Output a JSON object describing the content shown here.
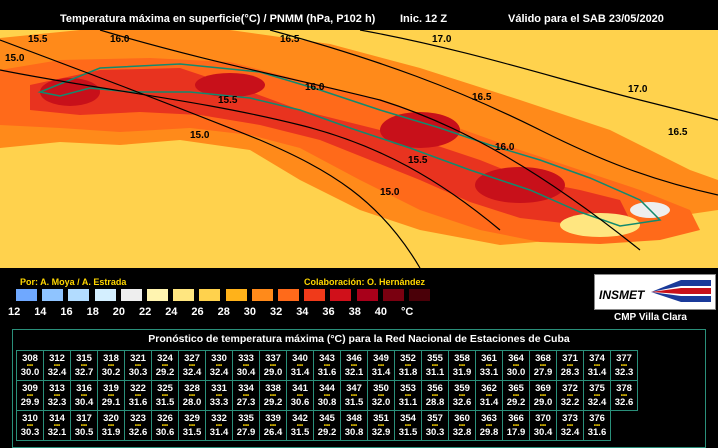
{
  "header": {
    "title": "Temperatura máxima en superficie(°C) / PNMM (hPa, P102 h)",
    "init": "Inic. 12 Z",
    "valid": "Válido para el SAB 23/05/2020"
  },
  "map": {
    "contour_labels": [
      "15.5",
      "16.0",
      "16.5",
      "17.0",
      "15.0",
      "15.5",
      "16.0",
      "16.5",
      "17.0",
      "16.5",
      "15.0",
      "15.5",
      "16.0",
      "15.0"
    ],
    "colors": {
      "sea": "#ffd24d",
      "land_hot": "#ff6a1a",
      "land_hotter": "#e8331f",
      "land_hottest": "#c8101a",
      "coast": "#118a6e"
    }
  },
  "legend": {
    "credit_left": "Por: A. Moya / A. Estrada",
    "credit_right": "Colaboración: O. Hernández",
    "colors": [
      "#6fa8ff",
      "#8fc4ff",
      "#b2dcff",
      "#d4efff",
      "#eeeeee",
      "#fff4b0",
      "#ffe680",
      "#ffd24d",
      "#ffb21a",
      "#ff8a1a",
      "#ff6a1a",
      "#f03a1a",
      "#d0101a",
      "#a8001a",
      "#7a0010",
      "#4a0008"
    ],
    "ticks": [
      "12",
      "14",
      "16",
      "18",
      "20",
      "22",
      "24",
      "26",
      "28",
      "30",
      "32",
      "34",
      "36",
      "38",
      "40",
      "°C"
    ]
  },
  "logo": {
    "text": "INSMET",
    "icon": "insmet-flag-logo"
  },
  "cmp": "CMP  Villa Clara",
  "table": {
    "title": "Pronóstico de temperatura máxima (°C) para la Red Nacional de Estaciones de Cuba",
    "rows": [
      [
        [
          "308",
          "30.0"
        ],
        [
          "312",
          "32.4"
        ],
        [
          "315",
          "32.7"
        ],
        [
          "318",
          "30.2"
        ],
        [
          "321",
          "30.3"
        ],
        [
          "324",
          "29.2"
        ],
        [
          "327",
          "32.4"
        ],
        [
          "330",
          "32.4"
        ],
        [
          "333",
          "30.4"
        ],
        [
          "337",
          "29.0"
        ],
        [
          "340",
          "31.4"
        ],
        [
          "343",
          "31.6"
        ],
        [
          "346",
          "32.1"
        ],
        [
          "349",
          "31.4"
        ],
        [
          "352",
          "31.8"
        ],
        [
          "355",
          "31.1"
        ],
        [
          "358",
          "31.9"
        ],
        [
          "361",
          "33.1"
        ],
        [
          "364",
          "30.0"
        ],
        [
          "368",
          "27.9"
        ],
        [
          "371",
          "28.3"
        ],
        [
          "374",
          "31.4"
        ],
        [
          "377",
          "32.3"
        ]
      ],
      [
        [
          "309",
          "29.9"
        ],
        [
          "313",
          "32.3"
        ],
        [
          "316",
          "30.4"
        ],
        [
          "319",
          "29.1"
        ],
        [
          "322",
          "31.6"
        ],
        [
          "325",
          "31.5"
        ],
        [
          "328",
          "28.0"
        ],
        [
          "331",
          "33.3"
        ],
        [
          "334",
          "27.3"
        ],
        [
          "338",
          "29.2"
        ],
        [
          "341",
          "30.6"
        ],
        [
          "344",
          "30.8"
        ],
        [
          "347",
          "31.5"
        ],
        [
          "350",
          "32.0"
        ],
        [
          "353",
          "31.1"
        ],
        [
          "356",
          "28.8"
        ],
        [
          "359",
          "32.6"
        ],
        [
          "362",
          "31.4"
        ],
        [
          "365",
          "29.2"
        ],
        [
          "369",
          "29.0"
        ],
        [
          "372",
          "32.2"
        ],
        [
          "375",
          "32.4"
        ],
        [
          "378",
          "32.6"
        ]
      ],
      [
        [
          "310",
          "30.3"
        ],
        [
          "314",
          "32.1"
        ],
        [
          "317",
          "30.5"
        ],
        [
          "320",
          "31.9"
        ],
        [
          "323",
          "32.6"
        ],
        [
          "326",
          "30.6"
        ],
        [
          "329",
          "31.5"
        ],
        [
          "332",
          "31.4"
        ],
        [
          "335",
          "27.9"
        ],
        [
          "339",
          "26.4"
        ],
        [
          "342",
          "31.5"
        ],
        [
          "345",
          "29.2"
        ],
        [
          "348",
          "30.8"
        ],
        [
          "351",
          "32.9"
        ],
        [
          "354",
          "31.5"
        ],
        [
          "357",
          "30.3"
        ],
        [
          "360",
          "32.8"
        ],
        [
          "363",
          "29.8"
        ],
        [
          "366",
          "17.9"
        ],
        [
          "370",
          "30.4"
        ],
        [
          "373",
          "32.4"
        ],
        [
          "376",
          "31.6"
        ]
      ]
    ]
  }
}
